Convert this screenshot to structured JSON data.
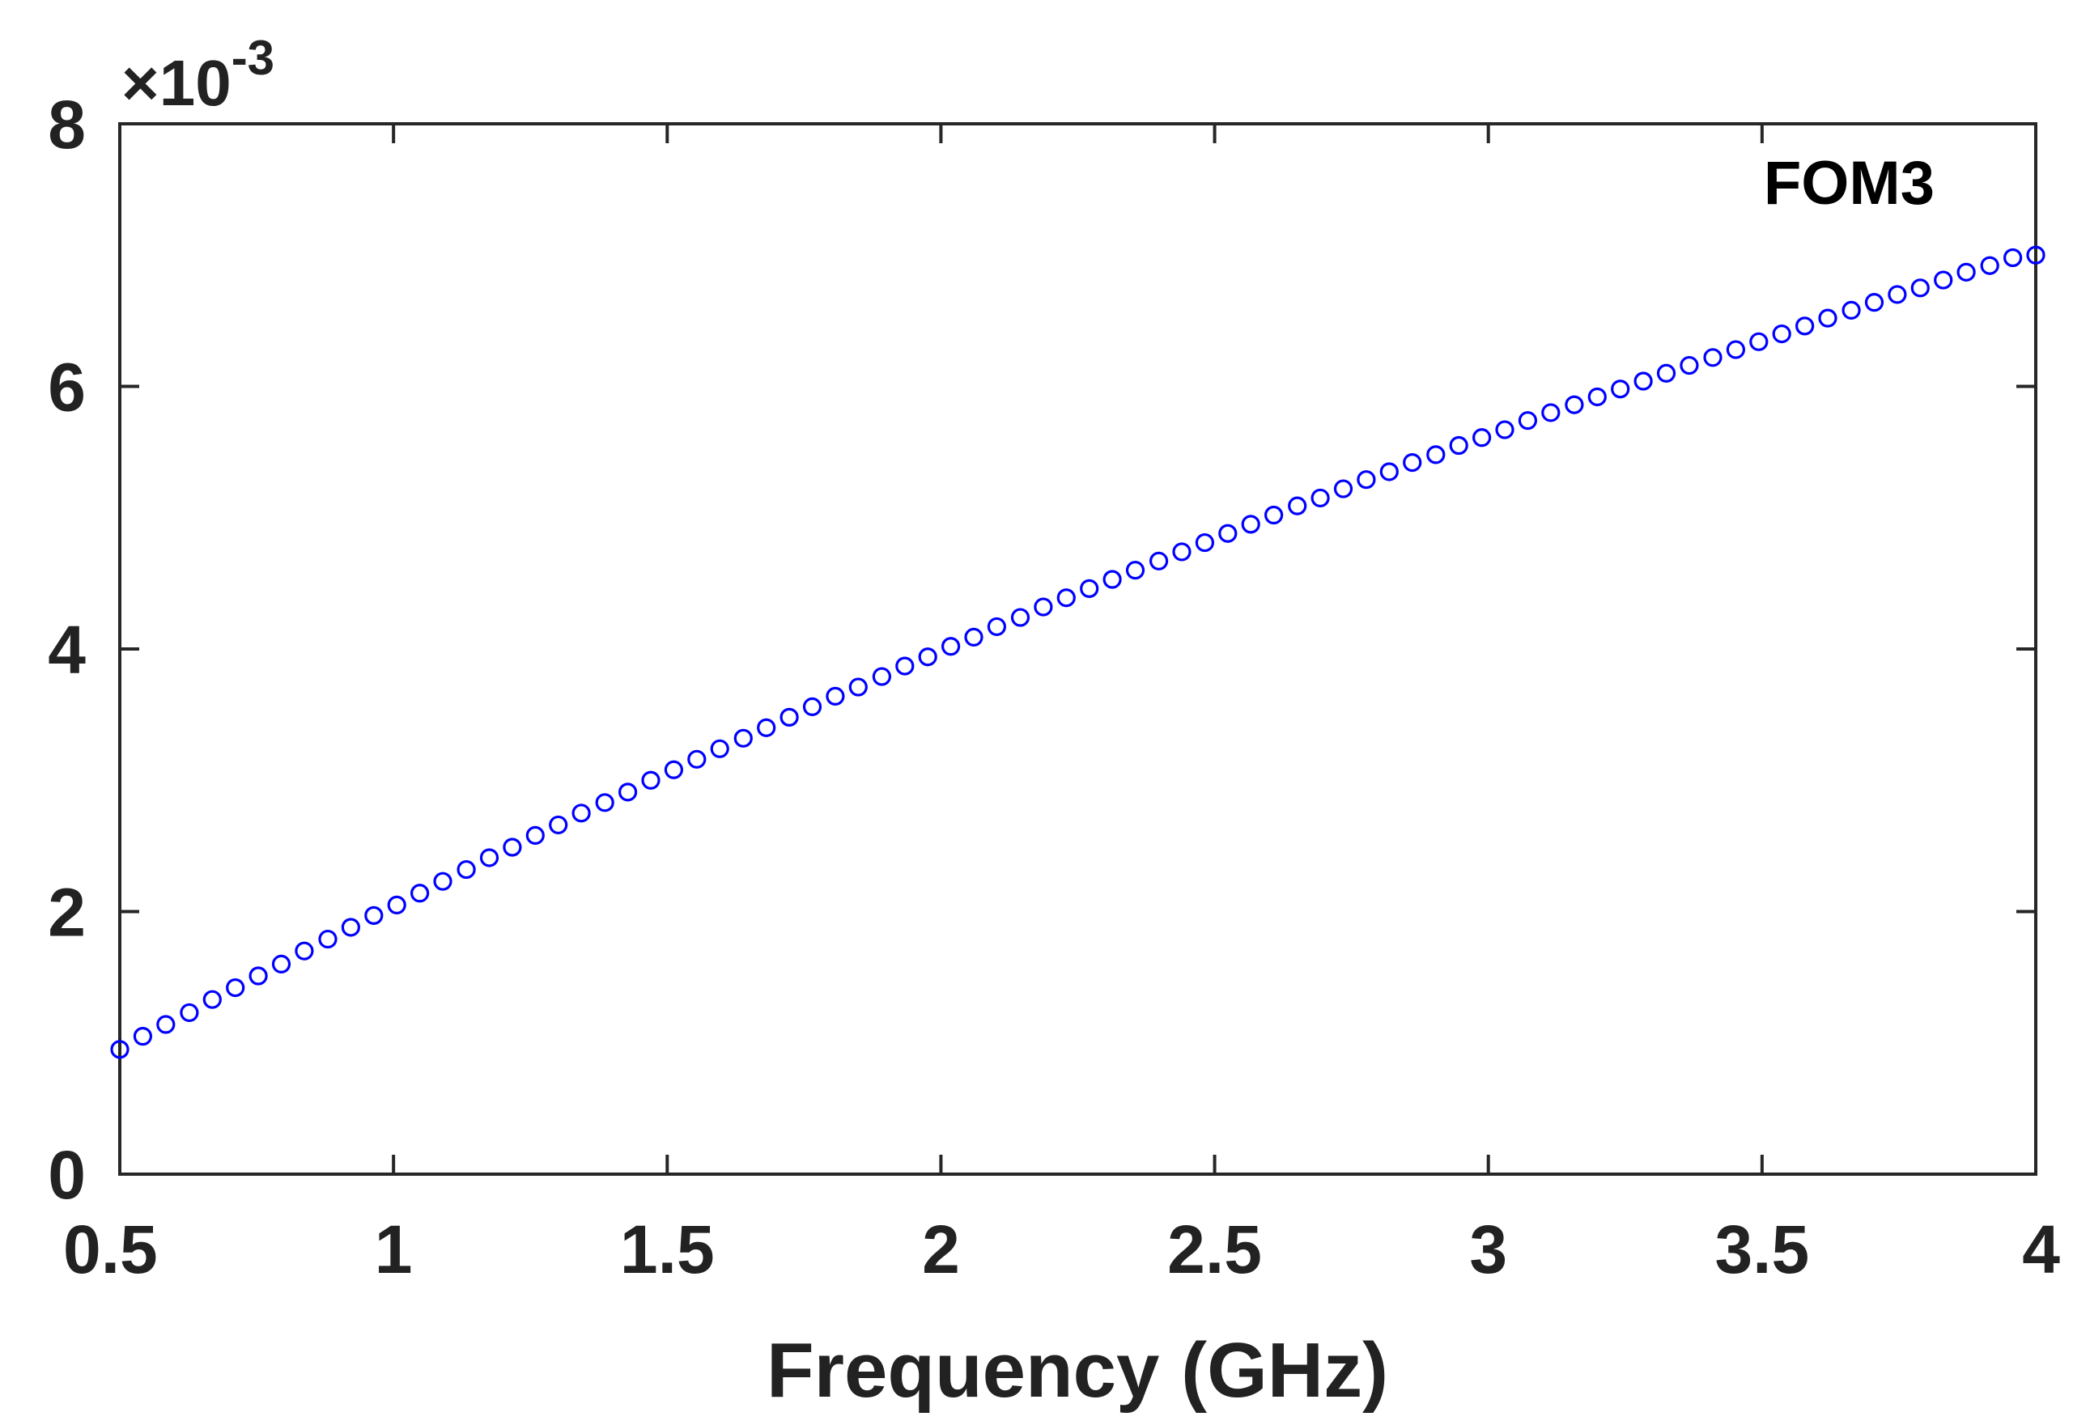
{
  "chart_data": {
    "type": "scatter",
    "xlabel": "Frequency (GHz)",
    "ylabel": "",
    "xlim": [
      0.5,
      4
    ],
    "ylim": [
      0,
      8
    ],
    "y_exponent_label": "×10",
    "y_exponent_power": "-3",
    "x_ticks": [
      0.5,
      1,
      1.5,
      2,
      2.5,
      3,
      3.5,
      4
    ],
    "x_tick_labels": [
      "0.5",
      "1",
      "1.5",
      "2",
      "2.5",
      "3",
      "3.5",
      "4"
    ],
    "y_ticks": [
      0,
      2,
      4,
      6,
      8
    ],
    "y_tick_labels": [
      "0",
      "2",
      "4",
      "6",
      "8"
    ],
    "grid": false,
    "legend_position": "top-right",
    "marker": "circle-open",
    "series": [
      {
        "name": "FOM3",
        "color": "#0000ff",
        "x": [
          0.5,
          0.542,
          0.584,
          0.627,
          0.669,
          0.711,
          0.753,
          0.795,
          0.837,
          0.88,
          0.922,
          0.964,
          1.006,
          1.048,
          1.09,
          1.133,
          1.175,
          1.217,
          1.259,
          1.301,
          1.343,
          1.386,
          1.428,
          1.47,
          1.512,
          1.554,
          1.596,
          1.639,
          1.681,
          1.723,
          1.765,
          1.807,
          1.849,
          1.892,
          1.934,
          1.976,
          2.018,
          2.06,
          2.102,
          2.145,
          2.187,
          2.229,
          2.271,
          2.313,
          2.355,
          2.398,
          2.44,
          2.482,
          2.524,
          2.566,
          2.608,
          2.651,
          2.693,
          2.735,
          2.777,
          2.819,
          2.861,
          2.904,
          2.946,
          2.988,
          3.03,
          3.072,
          3.114,
          3.157,
          3.199,
          3.241,
          3.283,
          3.325,
          3.367,
          3.41,
          3.452,
          3.494,
          3.536,
          3.578,
          3.62,
          3.663,
          3.705,
          3.747,
          3.789,
          3.831,
          3.873,
          3.916,
          3.958,
          4.0
        ],
        "values": [
          0.95,
          1.05,
          1.14,
          1.23,
          1.33,
          1.42,
          1.51,
          1.6,
          1.7,
          1.79,
          1.88,
          1.97,
          2.05,
          2.14,
          2.23,
          2.32,
          2.41,
          2.49,
          2.58,
          2.66,
          2.75,
          2.83,
          2.91,
          3.0,
          3.08,
          3.16,
          3.24,
          3.32,
          3.4,
          3.48,
          3.56,
          3.64,
          3.71,
          3.79,
          3.87,
          3.94,
          4.02,
          4.09,
          4.17,
          4.24,
          4.32,
          4.39,
          4.46,
          4.53,
          4.6,
          4.67,
          4.74,
          4.81,
          4.88,
          4.95,
          5.02,
          5.09,
          5.15,
          5.22,
          5.29,
          5.35,
          5.42,
          5.48,
          5.55,
          5.61,
          5.67,
          5.74,
          5.8,
          5.86,
          5.92,
          5.98,
          6.04,
          6.1,
          6.16,
          6.22,
          6.28,
          6.34,
          6.4,
          6.46,
          6.52,
          6.58,
          6.64,
          6.7,
          6.75,
          6.81,
          6.87,
          6.92,
          6.98,
          7.0
        ]
      }
    ]
  }
}
